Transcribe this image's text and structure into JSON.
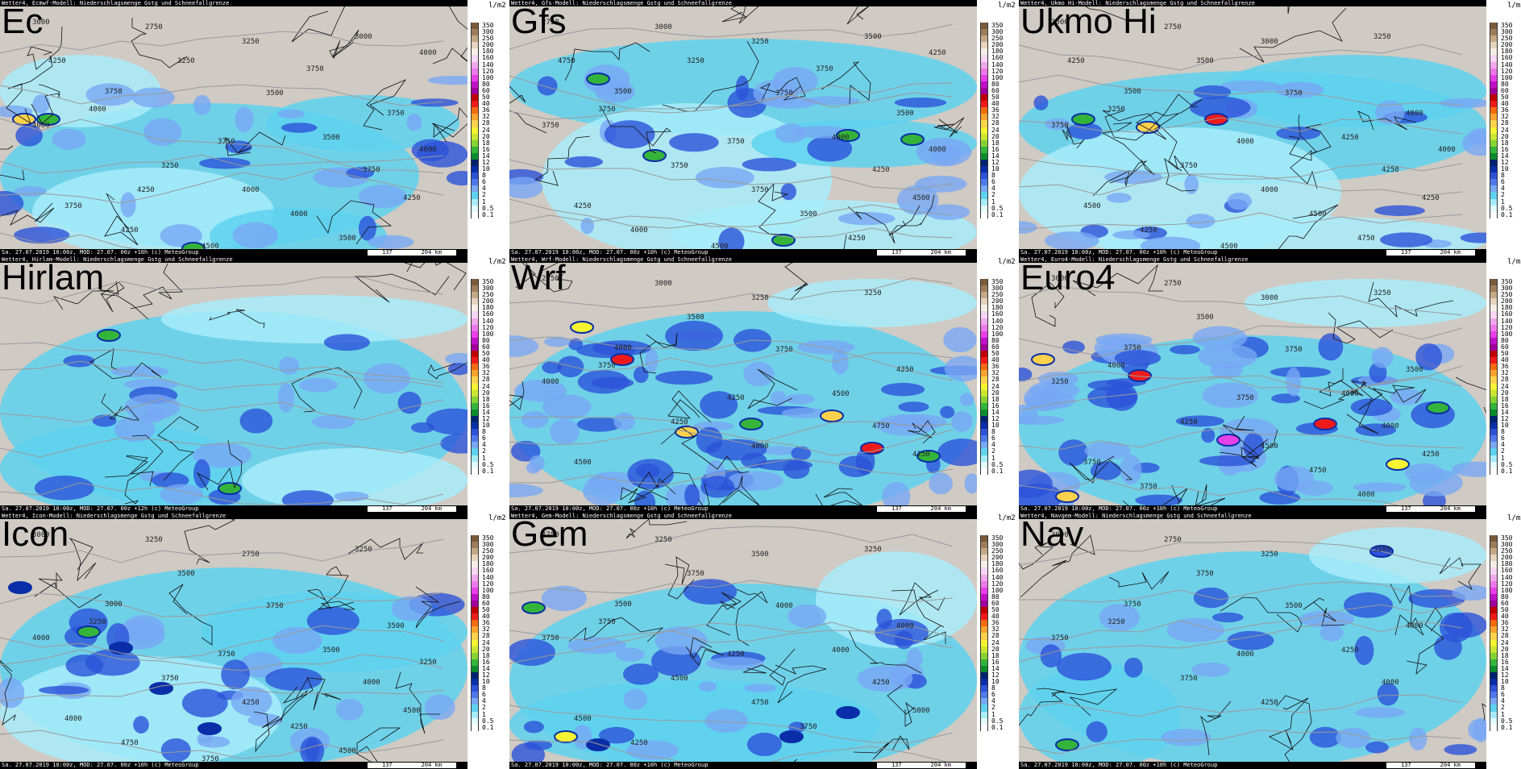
{
  "legend": {
    "unit": "l/m2",
    "labels": [
      "350",
      "300",
      "250",
      "200",
      "180",
      "160",
      "140",
      "120",
      "100",
      "80",
      "60",
      "50",
      "40",
      "36",
      "32",
      "28",
      "24",
      "20",
      "18",
      "16",
      "14",
      "12",
      "10",
      "8",
      "6",
      "4",
      "2",
      "1",
      "0.5",
      "0.1"
    ],
    "colors": [
      "#7a5a3c",
      "#a07c5a",
      "#c4a886",
      "#e4d3bf",
      "#f6eee4",
      "#f6d6f2",
      "#f0a8ec",
      "#ec78ea",
      "#e640e6",
      "#c010c8",
      "#a0009c",
      "#c00000",
      "#ee1a1a",
      "#f46a12",
      "#f8a42c",
      "#fcd24c",
      "#f4f432",
      "#c8e632",
      "#86d234",
      "#34b43a",
      "#0c8c2c",
      "#00226e",
      "#0a2ea8",
      "#2c52d8",
      "#5078ea",
      "#78a8f4",
      "#5ed2ee",
      "#a8ecfa",
      "#e2fafe",
      "#ffffff"
    ]
  },
  "footer": {
    "run_a": "Sa. 27.07.2019 10:00z, MOD: 27.07. 00z +10h (c) MeteoGroup",
    "run_b": "Sa. 27.07.2019 10:00z, MOD: 27.07. 00z +12h (c) MeteoGroup",
    "scale_1": "137",
    "scale_2": "204 km"
  },
  "panels": [
    {
      "title": "Ec",
      "header": "Wetter4, Ecmwf-Modell: Niederschlagsmenge Gstg und Schneefallgrenze",
      "footer_key": "run_a",
      "contours": [
        "3000",
        "2750",
        "3250",
        "3000",
        "3250",
        "3500",
        "3750",
        "4000",
        "3750",
        "4000",
        "3750",
        "3500",
        "3250",
        "3750",
        "4000",
        "3750",
        "4250",
        "4000",
        "4250",
        "3500",
        "4500",
        "4000",
        "4250",
        "3750",
        "4000",
        "4250"
      ]
    },
    {
      "title": "Gfs",
      "header": "Wetter4, Gfs-Modell: Niederschlagsmenge Gstg und Schneefallgrenze",
      "footer_key": "run_a",
      "contours": [
        "2750",
        "3000",
        "3250",
        "3500",
        "3250",
        "3750",
        "3500",
        "3750",
        "3500",
        "3750",
        "3750",
        "4000",
        "3750",
        "4250",
        "3750",
        "4250",
        "4500",
        "3500",
        "4000",
        "4250",
        "4500",
        "4000",
        "4750",
        "3750",
        "4250"
      ]
    },
    {
      "title": "Ukmo Hi",
      "header": "Wetter4, Ukmo Hi-Modell: Niederschlagsmenge Gstg und Schneefallgrenze",
      "footer_key": "run_a",
      "contours": [
        "3000",
        "2750",
        "3000",
        "3250",
        "3500",
        "3750",
        "3500",
        "3250",
        "4000",
        "3750",
        "4000",
        "4250",
        "3750",
        "4250",
        "4000",
        "4500",
        "4250",
        "4500",
        "4250",
        "4750",
        "4500",
        "4000",
        "4250"
      ]
    },
    {
      "title": "Hirlam",
      "header": "Wetter4, Hirlam-Modell: Niederschlagsmenge Gstg und Schneefallgrenze",
      "footer_key": "run_b",
      "contours": []
    },
    {
      "title": "Wrf",
      "header": "Wetter4, Wrf-Modell: Niederschlagsmenge Gstg und Schneefallgrenze",
      "footer_key": "run_a",
      "contours": [
        "2750",
        "3000",
        "3250",
        "3250",
        "3500",
        "3750",
        "4000",
        "3750",
        "4250",
        "4000",
        "4250",
        "4500",
        "4250",
        "4750",
        "4000",
        "4500",
        "4250"
      ]
    },
    {
      "title": "Euro4",
      "header": "Wetter4, Euro4-Modell: Niederschlagsmenge Gstg und Schneefallgrenze",
      "footer_key": "run_a",
      "contours": [
        "3000",
        "2750",
        "3000",
        "3250",
        "3500",
        "3750",
        "3750",
        "4000",
        "3500",
        "3250",
        "3750",
        "4000",
        "4250",
        "4000",
        "4500",
        "3750",
        "4250",
        "4750",
        "3750",
        "4000"
      ]
    },
    {
      "title": "Icon",
      "header": "Wetter4, Icon-Modell: Niederschlagsmenge Gstg und Schneefallgrenze",
      "footer_key": "run_a",
      "contours": [
        "3000",
        "3250",
        "2750",
        "3250",
        "3500",
        "3750",
        "3000",
        "3250",
        "3500",
        "4000",
        "3750",
        "3500",
        "3750",
        "4000",
        "4250",
        "4000",
        "4500",
        "4250",
        "4750",
        "4500",
        "3750",
        "3250"
      ]
    },
    {
      "title": "Gem",
      "header": "Wetter4, Gem-Modell: Niederschlagsmenge Gstg und Schneefallgrenze",
      "footer_key": "run_a",
      "contours": [
        "2750",
        "3250",
        "3500",
        "3250",
        "3750",
        "4000",
        "3500",
        "3750",
        "4000",
        "3750",
        "4250",
        "4000",
        "4500",
        "4250",
        "4750",
        "4500",
        "5000",
        "3750",
        "4250"
      ]
    },
    {
      "title": "Nav",
      "header": "Wetter4, Navgem-Modell: Niederschlagsmenge Gstg und Schneefallgrenze",
      "footer_key": "run_a",
      "contours": [
        "3000",
        "2750",
        "3250",
        "3500",
        "3750",
        "3500",
        "3750",
        "3250",
        "4000",
        "3750",
        "4000",
        "4250",
        "3750",
        "4000",
        "4250"
      ]
    }
  ]
}
